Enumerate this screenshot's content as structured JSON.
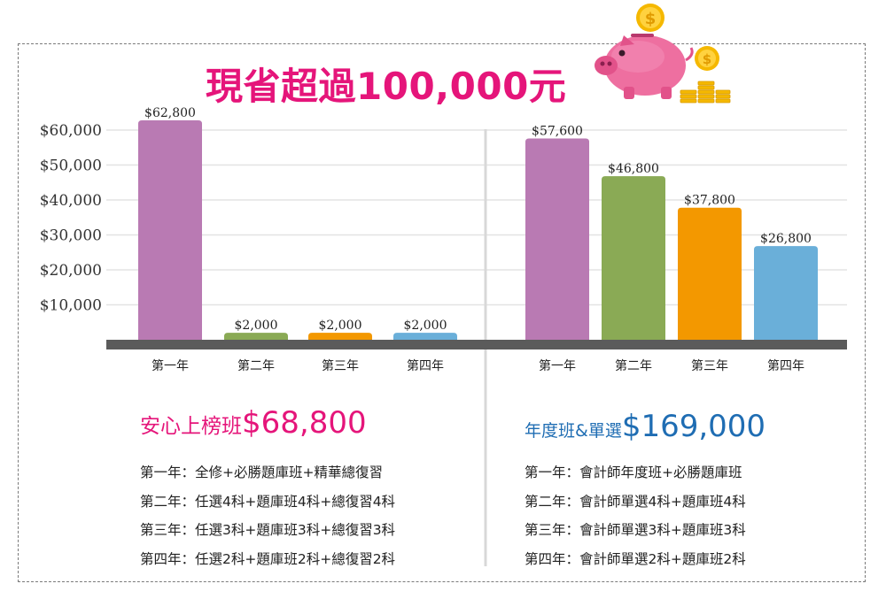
{
  "headline": "現省超過100,000元",
  "icons": [
    "piggy-bank-icon",
    "coin-icon",
    "coin-stack-icon"
  ],
  "colors": {
    "brand_pink": "#e5157a",
    "brand_blue": "#1f6db3",
    "purple": "#b97ab3",
    "green": "#8aaa55",
    "orange": "#f39800",
    "blue": "#6aafd9"
  },
  "chart_data": [
    {
      "type": "bar",
      "categories": [
        "第一年",
        "第二年",
        "第三年",
        "第四年"
      ],
      "values": [
        62800,
        2000,
        2000,
        2000
      ],
      "data_labels": [
        "$62,800",
        "$2,000",
        "$2,000",
        "$2,000"
      ],
      "bar_colors": [
        "#b97ab3",
        "#8aaa55",
        "#f39800",
        "#6aafd9"
      ],
      "yticks": [
        "$60,000",
        "$50,000",
        "$40,000",
        "$30,000",
        "$20,000",
        "$10,000"
      ],
      "ytick_values": [
        60000,
        50000,
        40000,
        30000,
        20000,
        10000
      ],
      "ylim": [
        0,
        66000
      ],
      "grid": true
    },
    {
      "type": "bar",
      "categories": [
        "第一年",
        "第二年",
        "第三年",
        "第四年"
      ],
      "values": [
        57600,
        46800,
        37800,
        26800
      ],
      "data_labels": [
        "$57,600",
        "$46,800",
        "$37,800",
        "$26,800"
      ],
      "bar_colors": [
        "#b97ab3",
        "#8aaa55",
        "#f39800",
        "#6aafd9"
      ],
      "ylim": [
        0,
        66000
      ],
      "grid": true
    }
  ],
  "plans": [
    {
      "name": "安心上榜班",
      "price": "$68,800",
      "lines": [
        "第一年：全修+必勝題庫班+精華總復習",
        "第二年：任選4科+題庫班4科+總復習4科",
        "第三年：任選3科+題庫班3科+總復習3科",
        "第四年：任選2科+題庫班2科+總復習2科"
      ]
    },
    {
      "name": "年度班&單選",
      "price": "$169,000",
      "lines": [
        "第一年：會計師年度班+必勝題庫班",
        "第二年：會計師單選4科+題庫班4科",
        "第三年：會計師單選3科+題庫班3科",
        "第四年：會計師單選2科+題庫班2科"
      ]
    }
  ]
}
